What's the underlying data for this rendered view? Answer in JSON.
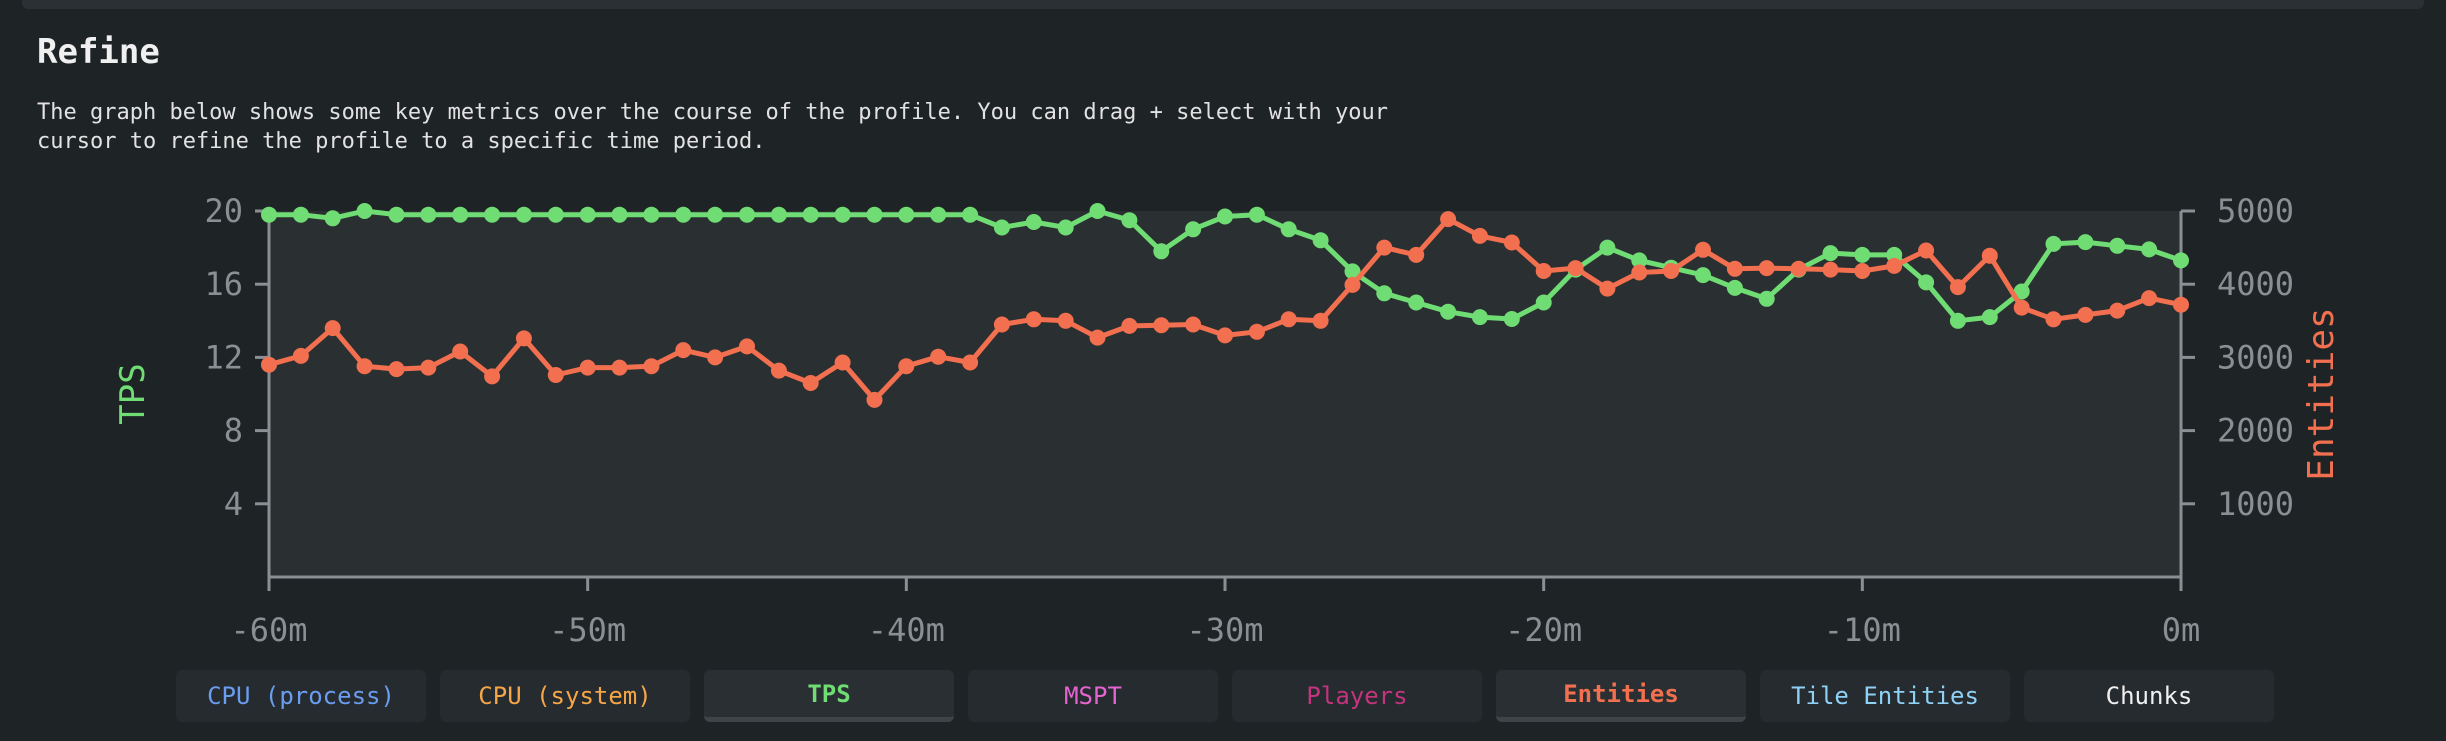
{
  "header": {
    "title": "Refine",
    "description": "The graph below shows some key metrics over the course of the profile. You can drag + select with your\ncursor to refine the profile to a specific time period."
  },
  "colors": {
    "tps": "#6fdc74",
    "entities": "#f2704f",
    "axis": "#8a8f93",
    "plot_bg": "#2a2f31"
  },
  "chart_data": {
    "type": "line",
    "x_ticks": [
      "-60m",
      "-50m",
      "-40m",
      "-30m",
      "-20m",
      "-10m",
      "0m"
    ],
    "x_range": [
      -60,
      0
    ],
    "y_left": {
      "label": "TPS",
      "range": [
        0,
        20
      ],
      "ticks": [
        "4",
        "8",
        "12",
        "16",
        "20"
      ],
      "tick_values": [
        4,
        8,
        12,
        16,
        20
      ]
    },
    "y_right": {
      "label": "Entities",
      "range": [
        0,
        5000
      ],
      "ticks": [
        "1000",
        "2000",
        "3000",
        "4000",
        "5000"
      ],
      "tick_values": [
        1000,
        2000,
        3000,
        4000,
        5000
      ]
    },
    "x": [
      -60,
      -59,
      -58,
      -57,
      -56,
      -55,
      -54,
      -53,
      -52,
      -51,
      -50,
      -49,
      -48,
      -47,
      -46,
      -45,
      -44,
      -43,
      -42,
      -41,
      -40,
      -39,
      -38,
      -37,
      -36,
      -35,
      -34,
      -33,
      -32,
      -31,
      -30,
      -29,
      -28,
      -27,
      -26,
      -25,
      -24,
      -23,
      -22,
      -21,
      -20,
      -19,
      -18,
      -17,
      -16,
      -15,
      -14,
      -13,
      -12,
      -11,
      -10,
      -9,
      -8,
      -7,
      -6,
      -5,
      -4,
      -3,
      -2,
      -1,
      0
    ],
    "series": [
      {
        "name": "TPS",
        "axis": "left",
        "color": "#6fdc74",
        "values": [
          19.8,
          19.8,
          19.6,
          20.0,
          19.8,
          19.8,
          19.8,
          19.8,
          19.8,
          19.8,
          19.8,
          19.8,
          19.8,
          19.8,
          19.8,
          19.8,
          19.8,
          19.8,
          19.8,
          19.8,
          19.8,
          19.8,
          19.8,
          19.1,
          19.4,
          19.1,
          20.0,
          19.5,
          17.8,
          19.0,
          19.7,
          19.8,
          19.0,
          18.4,
          16.7,
          15.5,
          15.0,
          14.5,
          14.2,
          14.1,
          15.0,
          16.8,
          18.0,
          17.3,
          16.9,
          16.5,
          15.8,
          15.2,
          16.8,
          17.7,
          17.6,
          17.6,
          16.1,
          14.0,
          14.2,
          15.6,
          18.2,
          18.3,
          18.1,
          17.9,
          17.3
        ]
      },
      {
        "name": "Entities",
        "axis": "right",
        "color": "#f2704f",
        "values": [
          2900,
          3020,
          3400,
          2880,
          2840,
          2860,
          3080,
          2740,
          3260,
          2760,
          2860,
          2860,
          2880,
          3100,
          3000,
          3150,
          2820,
          2650,
          2930,
          2420,
          2880,
          3010,
          2930,
          3450,
          3520,
          3500,
          3270,
          3430,
          3440,
          3450,
          3300,
          3350,
          3520,
          3500,
          3990,
          4500,
          4400,
          4890,
          4660,
          4570,
          4180,
          4220,
          3940,
          4160,
          4180,
          4470,
          4210,
          4220,
          4210,
          4200,
          4180,
          4250,
          4460,
          3960,
          4390,
          3680,
          3520,
          3580,
          3640,
          3810,
          3720
        ]
      }
    ]
  },
  "tabs": [
    {
      "label": "CPU (process)",
      "color": "#6a9cf0",
      "active": false
    },
    {
      "label": "CPU (system)",
      "color": "#f5a646",
      "active": false
    },
    {
      "label": "TPS",
      "color": "#6fdc74",
      "active": true
    },
    {
      "label": "MSPT",
      "color": "#e464d0",
      "active": false
    },
    {
      "label": "Players",
      "color": "#c2347e",
      "active": false
    },
    {
      "label": "Entities",
      "color": "#f2704f",
      "active": true
    },
    {
      "label": "Tile Entities",
      "color": "#8fd0f6",
      "active": false
    },
    {
      "label": "Chunks",
      "color": "#f0f0f0",
      "active": false
    }
  ]
}
